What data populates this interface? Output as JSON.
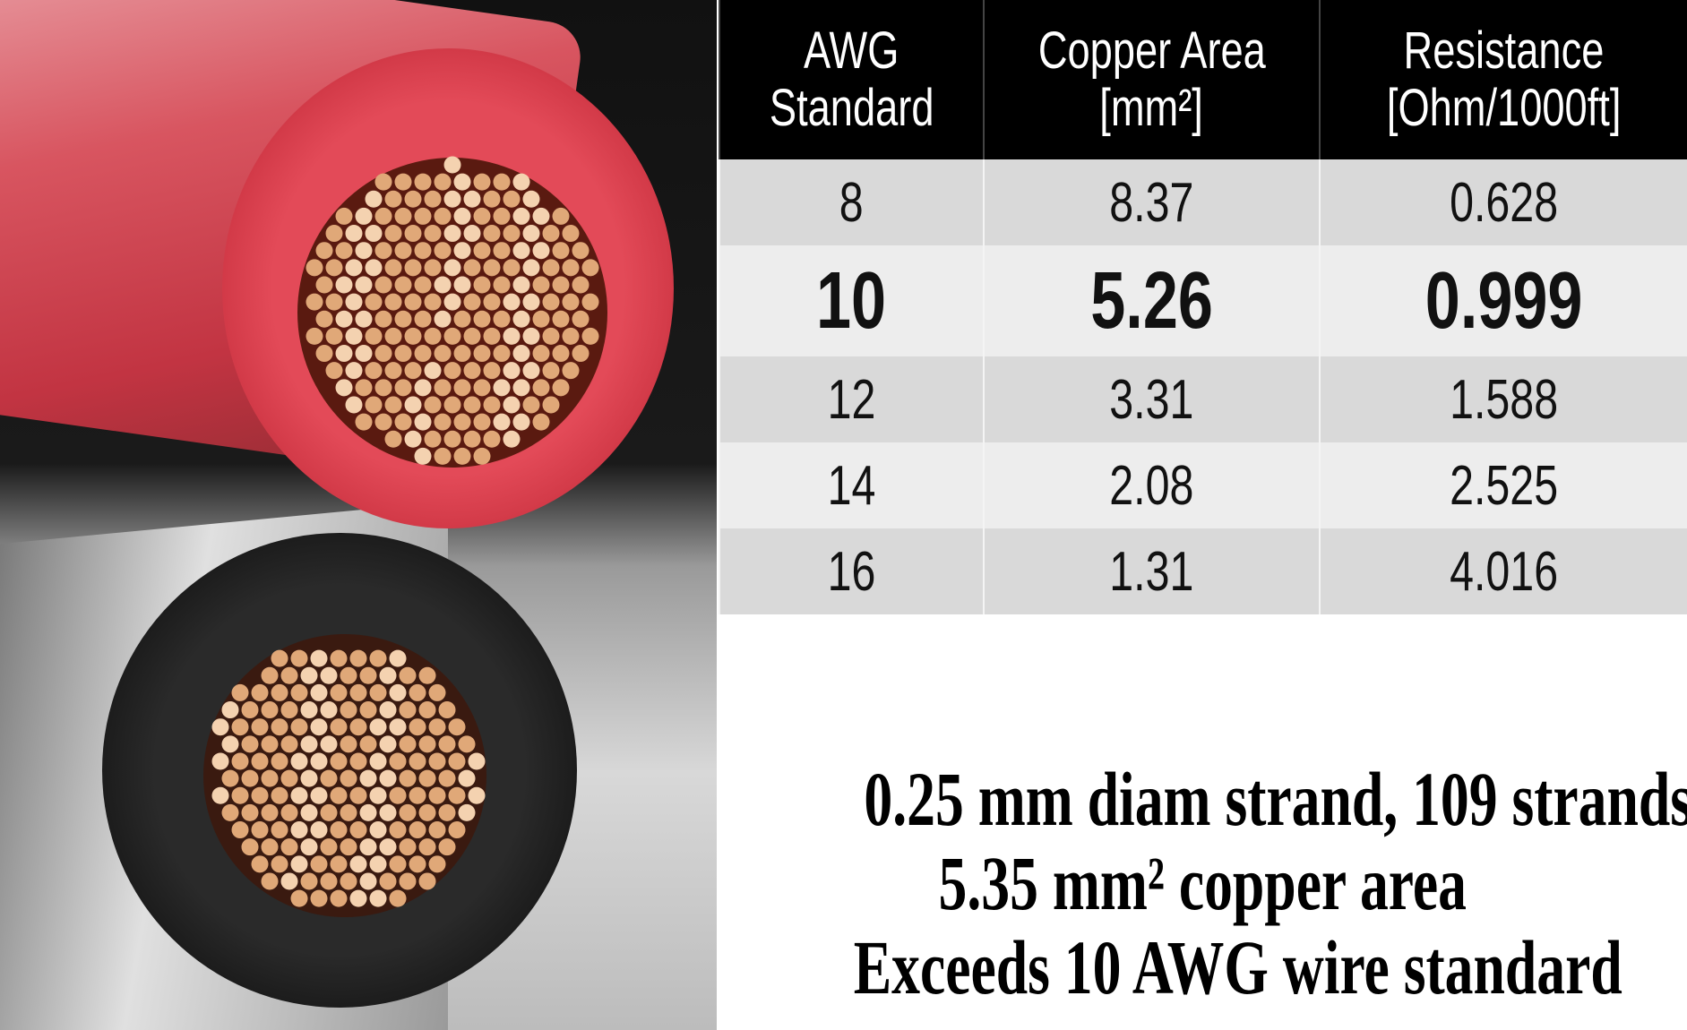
{
  "table": {
    "headers": [
      {
        "line1": "AWG",
        "line2": "Standard"
      },
      {
        "line1": "Copper Area",
        "line2": "[mm²]"
      },
      {
        "line1": "Resistance",
        "line2": "[Ohm/1000ft]"
      }
    ],
    "rows": [
      {
        "awg": "8",
        "area": "8.37",
        "resistance": "0.628"
      },
      {
        "awg": "10",
        "area": "5.26",
        "resistance": "0.999"
      },
      {
        "awg": "12",
        "area": "3.31",
        "resistance": "1.588"
      },
      {
        "awg": "14",
        "area": "2.08",
        "resistance": "2.525"
      },
      {
        "awg": "16",
        "area": "1.31",
        "resistance": "4.016"
      }
    ],
    "highlighted_row": "10"
  },
  "caption": {
    "line1": "0.25 mm diam strand, 109 strands",
    "line2": "5.35 mm² copper area",
    "line3": "Exceeds 10 AWG wire standard"
  },
  "colors": {
    "red_insulation": "#d83a48",
    "black_insulation": "#1c1c1c",
    "copper": "#e0a878",
    "header_bg": "#000000"
  }
}
